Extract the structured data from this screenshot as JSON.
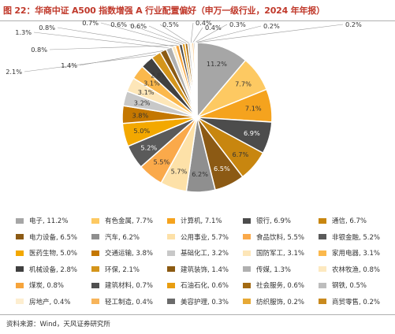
{
  "title": "图 22：华商中证 A500 指数增强 A 行业配置偏好（申万一级行业，2024 年年报）",
  "source": "资料来源：Wind，天风证券研究所",
  "chart_data": {
    "type": "pie",
    "title": "图 22：华商中证 A500 指数增强 A 行业配置偏好（申万一级行业，2024 年年报）",
    "legend_placement": "bottom",
    "slices": [
      {
        "label": "电子",
        "value": 11.2,
        "value_label": "11.2%",
        "color": "#a6a6a6"
      },
      {
        "label": "有色金属",
        "value": 7.7,
        "value_label": "7.7%",
        "color": "#fdc962"
      },
      {
        "label": "计算机",
        "value": 7.1,
        "value_label": "7.1%",
        "color": "#f5a31e"
      },
      {
        "label": "银行",
        "value": 6.9,
        "value_label": "6.9%",
        "color": "#4c4c4c"
      },
      {
        "label": "通信",
        "value": 6.7,
        "value_label": "6.7%",
        "color": "#c8860f"
      },
      {
        "label": "电力设备",
        "value": 6.5,
        "value_label": "6.5%",
        "color": "#8c5a14"
      },
      {
        "label": "汽车",
        "value": 6.2,
        "value_label": "6.2%",
        "color": "#8f8f8f"
      },
      {
        "label": "公用事业",
        "value": 5.7,
        "value_label": "5.7%",
        "color": "#fde1a8"
      },
      {
        "label": "食品饮料",
        "value": 5.5,
        "value_label": "5.5%",
        "color": "#faa94a"
      },
      {
        "label": "非银金融",
        "value": 5.2,
        "value_label": "5.2%",
        "color": "#5a5a5a"
      },
      {
        "label": "医药生物",
        "value": 5.0,
        "value_label": "5.0%",
        "color": "#f3a800"
      },
      {
        "label": "交通运输",
        "value": 3.8,
        "value_label": "3.8%",
        "color": "#c47700"
      },
      {
        "label": "基础化工",
        "value": 3.2,
        "value_label": "3.2%",
        "color": "#c8c8c8"
      },
      {
        "label": "国防军工",
        "value": 3.1,
        "value_label": "3.1%",
        "color": "#fde6b8"
      },
      {
        "label": "家用电器",
        "value": 3.1,
        "value_label": "3.1%",
        "color": "#fbb84c"
      },
      {
        "label": "机械设备",
        "value": 2.8,
        "value_label": "2.8%",
        "color": "#404040"
      },
      {
        "label": "环保",
        "value": 2.1,
        "value_label": "2.1%",
        "color": "#d4951b"
      },
      {
        "label": "建筑装饰",
        "value": 1.4,
        "value_label": "1.4%",
        "color": "#8b5a12"
      },
      {
        "label": "传媒",
        "value": 1.3,
        "value_label": "1.3%",
        "color": "#b0b0b0"
      },
      {
        "label": "农林牧渔",
        "value": 0.8,
        "value_label": "0.8%",
        "color": "#fde9c0"
      },
      {
        "label": "煤炭",
        "value": 0.8,
        "value_label": "0.8%",
        "color": "#f6a43c"
      },
      {
        "label": "建筑材料",
        "value": 0.7,
        "value_label": "0.7%",
        "color": "#505050"
      },
      {
        "label": "石油石化",
        "value": 0.6,
        "value_label": "0.6%",
        "color": "#e89d10"
      },
      {
        "label": "社会服务",
        "value": 0.6,
        "value_label": "0.6%",
        "color": "#a36a12"
      },
      {
        "label": "钢铁",
        "value": 0.5,
        "value_label": "0.5%",
        "color": "#bdbdbd"
      },
      {
        "label": "房地产",
        "value": 0.4,
        "value_label": "0.4%",
        "color": "#fdeed0"
      },
      {
        "label": "轻工制造",
        "value": 0.4,
        "value_label": "0.4%",
        "color": "#f7b45a"
      },
      {
        "label": "美容护理",
        "value": 0.3,
        "value_label": "0.3%",
        "color": "#6b6b6b"
      },
      {
        "label": "纺织服饰",
        "value": 0.2,
        "value_label": "0.2%",
        "color": "#e7a935"
      },
      {
        "label": "商贸零售",
        "value": 0.2,
        "value_label": "0.2%",
        "color": "#c98a1e"
      }
    ]
  }
}
